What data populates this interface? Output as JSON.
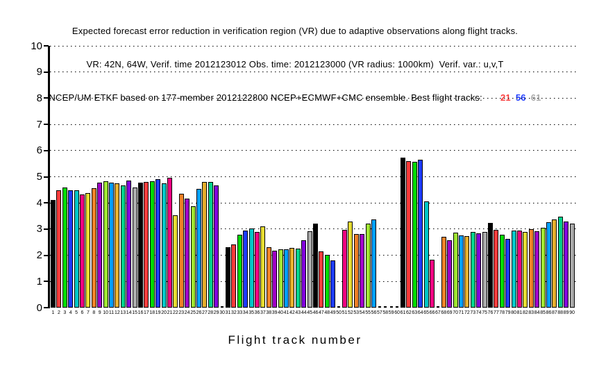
{
  "title": {
    "line1": "Expected forecast error reduction in verification region (VR) due to adaptive observations along flight tracks.",
    "line2": "VR: 42N, 64W, Verif. time 2012123012 Obs. time: 2012123000 (VR radius: 1000km)  Verif. var.: u,v,T",
    "line3_prefix": "NCEP/UM ETKF based on 177-member 2012122800 NCEP+ECMWF+CMC ensemble. Best flight tracks:",
    "best_tracks": [
      {
        "label": "21",
        "color": "#fa3c3c"
      },
      {
        "label": "56",
        "color": "#1e3cff"
      },
      {
        "label": "61",
        "color": "#aaaaaa"
      }
    ]
  },
  "chart_data": {
    "type": "bar",
    "title": "Expected forecast error reduction in VR due to adaptive observations along flight tracks",
    "xlabel": "Flight track number",
    "ylabel": "",
    "ylim": [
      0,
      10
    ],
    "yticks": [
      0,
      1,
      2,
      3,
      4,
      5,
      6,
      7,
      8,
      9,
      10
    ],
    "grid": "horizontal dotted lines at each integer, 1 through 10",
    "legend": "none",
    "slots": 90,
    "x_first": 1,
    "x_last": 90,
    "missing_slots": [
      30,
      50,
      57,
      58,
      59,
      60,
      67
    ],
    "color_cycle_names": [
      "black",
      "red",
      "green",
      "dark-blue",
      "light-blue",
      "magenta",
      "yellow",
      "orange",
      "purple",
      "yellow-green",
      "medium-blue",
      "dark-yellow",
      "aqua",
      "dark-purple",
      "gray"
    ],
    "color_cycle_hex": [
      "#000000",
      "#fa3c3c",
      "#00dc00",
      "#1e3cff",
      "#00c8c8",
      "#f00082",
      "#e6dc32",
      "#f08228",
      "#a000c8",
      "#a0e632",
      "#00a0ff",
      "#e6af2d",
      "#00d28c",
      "#8200dc",
      "#aaaaaa"
    ],
    "values": [
      4.1,
      4.48,
      4.58,
      4.48,
      4.48,
      4.32,
      4.38,
      4.57,
      4.78,
      4.84,
      4.77,
      4.74,
      4.66,
      4.86,
      4.6,
      4.78,
      4.8,
      4.82,
      4.92,
      4.76,
      4.96,
      3.53,
      4.34,
      4.16,
      3.88,
      4.53,
      4.8,
      4.8,
      4.66,
      null,
      2.3,
      2.42,
      2.78,
      2.94,
      3.02,
      2.88,
      3.1,
      2.3,
      2.18,
      2.22,
      2.22,
      2.28,
      2.26,
      2.56,
      2.92,
      3.2,
      2.16,
      2.02,
      1.8,
      null,
      2.98,
      3.3,
      2.8,
      2.8,
      3.2,
      3.38,
      null,
      null,
      null,
      null,
      5.74,
      5.61,
      5.57,
      5.65,
      4.06,
      1.82,
      null,
      2.7,
      2.58,
      2.86,
      2.77,
      2.72,
      2.9,
      2.84,
      2.9,
      3.24,
      2.97,
      2.79,
      2.62,
      2.95,
      2.95,
      2.88,
      3.01,
      2.91,
      3.06,
      3.26,
      3.37,
      3.48,
      3.3,
      3.22
    ]
  }
}
